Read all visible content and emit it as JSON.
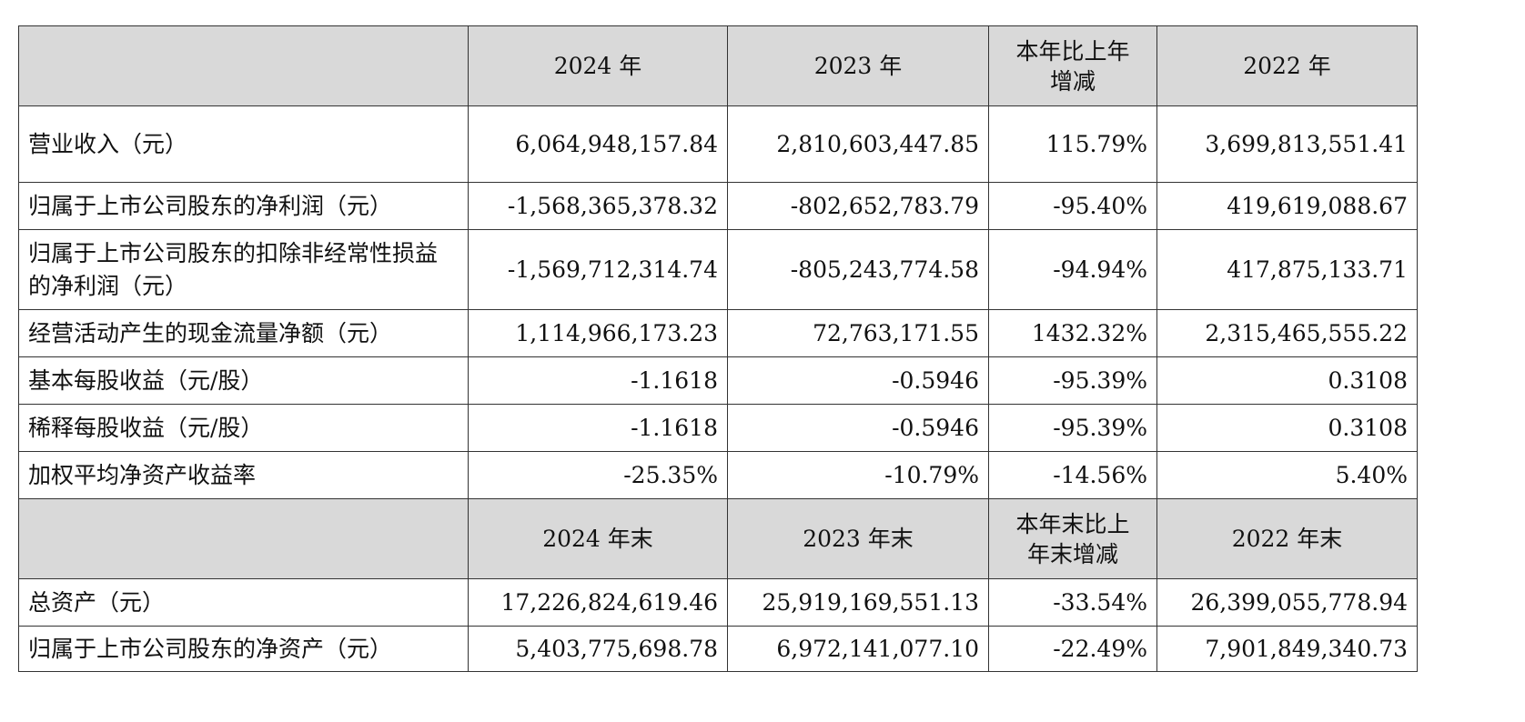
{
  "header1": {
    "blank": "",
    "col1": "2024 年",
    "col2": "2023 年",
    "col3_line1": "本年比上年",
    "col3_line2": "增减",
    "col4": "2022 年"
  },
  "rows1": [
    {
      "label": "营业收入（元）",
      "v2024": "6,064,948,157.84",
      "v2023": "2,810,603,447.85",
      "change": "115.79%",
      "v2022": "3,699,813,551.41"
    },
    {
      "label": "归属于上市公司股东的净利润（元）",
      "v2024": "-1,568,365,378.32",
      "v2023": "-802,652,783.79",
      "change": "-95.40%",
      "v2022": "419,619,088.67"
    },
    {
      "label": "归属于上市公司股东的扣除非经常性损益的净利润（元）",
      "v2024": "-1,569,712,314.74",
      "v2023": "-805,243,774.58",
      "change": "-94.94%",
      "v2022": "417,875,133.71"
    },
    {
      "label": "经营活动产生的现金流量净额（元）",
      "v2024": "1,114,966,173.23",
      "v2023": "72,763,171.55",
      "change": "1432.32%",
      "v2022": "2,315,465,555.22"
    },
    {
      "label": "基本每股收益（元/股）",
      "v2024": "-1.1618",
      "v2023": "-0.5946",
      "change": "-95.39%",
      "v2022": "0.3108"
    },
    {
      "label": "稀释每股收益（元/股）",
      "v2024": "-1.1618",
      "v2023": "-0.5946",
      "change": "-95.39%",
      "v2022": "0.3108"
    },
    {
      "label": "加权平均净资产收益率",
      "v2024": "-25.35%",
      "v2023": "-10.79%",
      "change": "-14.56%",
      "v2022": "5.40%"
    }
  ],
  "header2": {
    "blank": "",
    "col1": "2024 年末",
    "col2": "2023 年末",
    "col3_line1": "本年末比上",
    "col3_line2": "年末增减",
    "col4": "2022 年末"
  },
  "rows2": [
    {
      "label": "总资产（元）",
      "v2024": "17,226,824,619.46",
      "v2023": "25,919,169,551.13",
      "change": "-33.54%",
      "v2022": "26,399,055,778.94"
    },
    {
      "label": "归属于上市公司股东的净资产（元）",
      "v2024": "5,403,775,698.78",
      "v2023": "6,972,141,077.10",
      "change": "-22.49%",
      "v2022": "7,901,849,340.73"
    }
  ]
}
